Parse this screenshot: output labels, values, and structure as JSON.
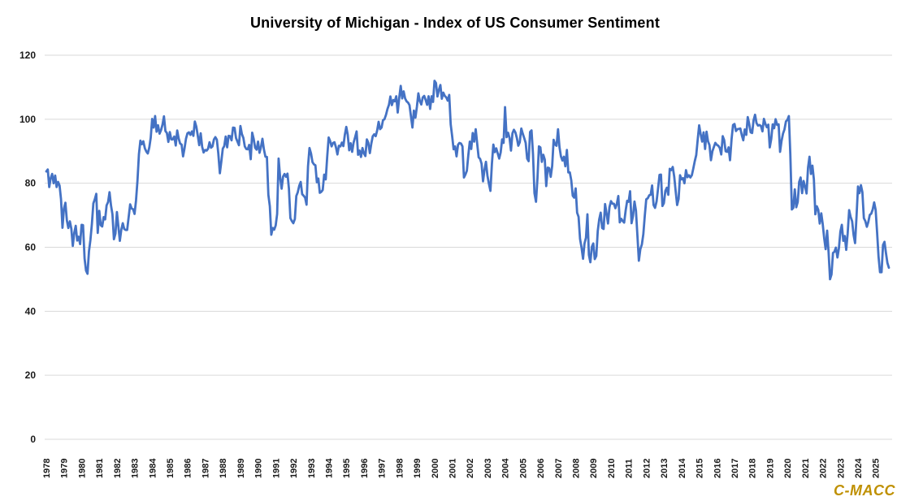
{
  "chart": {
    "title": "University of Michigan - Index of US Consumer Sentiment"
  },
  "watermark": {
    "text": "C-MACC",
    "color": "#BF9000"
  },
  "chart_data": {
    "type": "line",
    "title": "University of Michigan - Index of US Consumer Sentiment",
    "series_name": "Index of US Consumer Sentiment",
    "frequency": "monthly",
    "start_year": 1978,
    "start_month": 1,
    "xlabel": "",
    "ylabel": "",
    "ylim": [
      0,
      120
    ],
    "y_ticks": [
      0,
      20,
      40,
      60,
      80,
      100,
      120
    ],
    "x_tick_labels": [
      "1978",
      "1979",
      "1980",
      "1981",
      "1982",
      "1983",
      "1984",
      "1985",
      "1986",
      "1987",
      "1988",
      "1989",
      "1990",
      "1991",
      "1992",
      "1993",
      "1994",
      "1995",
      "1996",
      "1997",
      "1998",
      "1999",
      "2000",
      "2001",
      "2002",
      "2003",
      "2004",
      "2005",
      "2006",
      "2007",
      "2008",
      "2009",
      "2010",
      "2011",
      "2012",
      "2013",
      "2014",
      "2015",
      "2016",
      "2017",
      "2018",
      "2019",
      "2020",
      "2021",
      "2022",
      "2023",
      "2024",
      "2025"
    ],
    "grid": true,
    "legend": false,
    "line_color": "#4472C4",
    "gridline_color": "#D9D9D9",
    "tick_label_color": "#1a1a1a",
    "monthly_values_by_year": {
      "1978": [
        83.7,
        84.3,
        78.8,
        81.6,
        82.9,
        80.0,
        82.4,
        78.8,
        80.4,
        79.3,
        75.0,
        66.1
      ],
      "1979": [
        72.1,
        73.9,
        68.4,
        66.0,
        68.1,
        65.8,
        60.4,
        64.5,
        66.7,
        62.1,
        63.3,
        61.0
      ],
      "1980": [
        67.0,
        66.9,
        56.5,
        52.7,
        51.7,
        58.7,
        62.3,
        67.3,
        73.7,
        75.0,
        76.7,
        64.5
      ],
      "1981": [
        71.4,
        66.9,
        66.5,
        69.4,
        68.7,
        73.1,
        74.1,
        77.2,
        73.1,
        70.3,
        62.5,
        64.3
      ],
      "1982": [
        71.0,
        66.5,
        62.0,
        65.5,
        67.5,
        65.7,
        65.4,
        65.4,
        69.3,
        73.4,
        72.1,
        71.9
      ],
      "1983": [
        70.4,
        74.6,
        80.8,
        89.1,
        93.3,
        92.2,
        93.1,
        90.9,
        89.9,
        89.3,
        91.1,
        94.2
      ],
      "1984": [
        100.1,
        97.4,
        101.0,
        96.1,
        98.1,
        95.5,
        96.6,
        98.3,
        100.9,
        96.3,
        95.7,
        92.9
      ],
      "1985": [
        96.0,
        93.7,
        93.7,
        94.6,
        91.8,
        96.5,
        94.0,
        92.4,
        92.1,
        88.4,
        90.9,
        93.9
      ],
      "1986": [
        95.6,
        95.9,
        95.1,
        96.2,
        94.8,
        99.3,
        97.7,
        94.9,
        91.9,
        95.6,
        91.4,
        89.6
      ],
      "1987": [
        90.4,
        90.2,
        90.8,
        92.8,
        91.1,
        91.5,
        93.7,
        94.4,
        93.6,
        89.3,
        83.1,
        86.8
      ],
      "1988": [
        90.8,
        91.6,
        94.6,
        91.2,
        94.8,
        94.7,
        93.4,
        97.4,
        97.3,
        94.1,
        93.0,
        91.9
      ],
      "1989": [
        97.9,
        95.4,
        94.2,
        91.5,
        90.7,
        90.6,
        92.0,
        87.5,
        95.8,
        93.9,
        91.1,
        90.5
      ],
      "1990": [
        93.0,
        89.5,
        91.3,
        93.9,
        90.6,
        88.3,
        88.2,
        76.4,
        72.8,
        63.9,
        66.0,
        65.5
      ],
      "1991": [
        66.8,
        70.4,
        87.7,
        81.8,
        78.3,
        82.1,
        82.9,
        82.0,
        83.0,
        78.3,
        69.1,
        68.2
      ],
      "1992": [
        67.5,
        68.8,
        76.0,
        77.2,
        79.2,
        80.4,
        76.6,
        76.1,
        75.5,
        73.3,
        85.3,
        91.0
      ],
      "1993": [
        89.3,
        86.6,
        85.9,
        85.6,
        80.3,
        81.5,
        77.0,
        77.3,
        77.9,
        82.7,
        81.2,
        88.2
      ],
      "1994": [
        94.3,
        93.2,
        91.5,
        92.6,
        92.8,
        91.2,
        89.0,
        91.7,
        91.5,
        92.7,
        91.6,
        95.1
      ],
      "1995": [
        97.6,
        95.1,
        90.3,
        92.5,
        89.8,
        92.7,
        94.4,
        96.2,
        88.9,
        90.2,
        88.2,
        91.0
      ],
      "1996": [
        89.3,
        88.5,
        93.7,
        92.7,
        89.4,
        92.4,
        94.7,
        95.3,
        94.7,
        96.5,
        99.2,
        96.9
      ],
      "1997": [
        97.4,
        99.7,
        100.0,
        101.4,
        103.2,
        104.5,
        107.1,
        104.4,
        106.0,
        105.6,
        107.2,
        102.1
      ],
      "1998": [
        106.6,
        110.4,
        106.5,
        108.7,
        106.5,
        105.6,
        105.2,
        104.4,
        100.9,
        97.4,
        102.7,
        100.5
      ],
      "1999": [
        103.9,
        108.1,
        105.7,
        104.6,
        106.8,
        107.3,
        106.0,
        104.5,
        107.2,
        103.2,
        107.2,
        105.4
      ],
      "2000": [
        112.0,
        111.3,
        107.1,
        109.2,
        110.7,
        106.4,
        108.3,
        107.3,
        106.8,
        105.8,
        107.6,
        98.4
      ],
      "2001": [
        94.7,
        90.6,
        91.5,
        88.4,
        92.0,
        92.6,
        92.4,
        91.5,
        81.8,
        82.7,
        83.9,
        88.8
      ],
      "2002": [
        93.0,
        90.7,
        95.7,
        93.0,
        96.9,
        92.4,
        88.1,
        87.6,
        86.1,
        80.6,
        84.2,
        86.7
      ],
      "2003": [
        82.4,
        79.9,
        77.6,
        86.0,
        92.1,
        89.7,
        90.9,
        89.3,
        87.7,
        89.6,
        93.7,
        92.6
      ],
      "2004": [
        103.8,
        94.4,
        95.8,
        94.2,
        90.2,
        95.6,
        96.7,
        95.9,
        94.2,
        91.7,
        92.8,
        97.1
      ],
      "2005": [
        95.5,
        94.1,
        92.6,
        87.7,
        86.9,
        96.0,
        96.5,
        89.1,
        76.9,
        74.2,
        81.6,
        91.5
      ],
      "2006": [
        91.2,
        86.7,
        88.9,
        87.4,
        79.1,
        84.9,
        84.7,
        82.0,
        85.4,
        93.6,
        92.1,
        91.7
      ],
      "2007": [
        96.9,
        91.3,
        88.4,
        87.1,
        88.3,
        85.3,
        90.4,
        83.4,
        83.4,
        80.9,
        76.1,
        75.5
      ],
      "2008": [
        78.4,
        70.8,
        69.5,
        62.6,
        59.8,
        56.4,
        61.2,
        63.0,
        70.3,
        57.6,
        55.3,
        60.1
      ],
      "2009": [
        61.2,
        56.3,
        57.3,
        65.1,
        68.7,
        70.8,
        66.0,
        65.7,
        73.5,
        70.6,
        67.4,
        72.5
      ],
      "2010": [
        74.4,
        73.6,
        73.6,
        72.2,
        73.6,
        76.0,
        67.8,
        68.9,
        68.2,
        67.7,
        71.6,
        74.5
      ],
      "2011": [
        74.2,
        77.5,
        67.5,
        69.8,
        74.3,
        71.5,
        63.7,
        55.8,
        59.4,
        60.9,
        64.1,
        69.9
      ],
      "2012": [
        75.0,
        75.3,
        76.2,
        76.4,
        79.3,
        73.2,
        72.3,
        74.3,
        78.3,
        82.6,
        82.7,
        72.9
      ],
      "2013": [
        73.8,
        77.6,
        78.6,
        76.4,
        84.5,
        84.1,
        85.1,
        82.1,
        77.5,
        73.2,
        75.1,
        82.5
      ],
      "2014": [
        81.2,
        81.6,
        80.0,
        84.1,
        81.9,
        82.5,
        81.8,
        82.5,
        84.6,
        86.9,
        88.8,
        93.6
      ],
      "2015": [
        98.1,
        95.4,
        93.0,
        95.9,
        90.7,
        96.1,
        93.1,
        91.9,
        87.2,
        90.0,
        91.3,
        92.6
      ],
      "2016": [
        92.0,
        91.7,
        91.0,
        89.0,
        94.7,
        93.5,
        90.0,
        89.8,
        91.2,
        87.2,
        93.8,
        98.2
      ],
      "2017": [
        98.5,
        96.3,
        96.9,
        97.0,
        97.1,
        95.0,
        93.4,
        96.8,
        95.1,
        100.7,
        98.5,
        95.9
      ],
      "2018": [
        95.7,
        99.7,
        101.4,
        98.8,
        98.0,
        98.2,
        97.9,
        96.2,
        100.1,
        98.6,
        97.5,
        98.3
      ],
      "2019": [
        91.2,
        93.8,
        98.4,
        97.2,
        100.0,
        98.2,
        98.4,
        89.8,
        93.2,
        95.5,
        96.8,
        99.3
      ],
      "2020": [
        99.8,
        101.0,
        89.1,
        71.8,
        72.3,
        78.1,
        72.5,
        74.1,
        80.4,
        81.8,
        76.9,
        80.7
      ],
      "2021": [
        79.0,
        76.8,
        84.9,
        88.3,
        82.9,
        85.5,
        81.2,
        70.3,
        72.8,
        71.7,
        67.4,
        70.6
      ],
      "2022": [
        67.2,
        62.8,
        59.4,
        65.2,
        58.4,
        50.0,
        51.5,
        58.2,
        58.6,
        59.9,
        56.8,
        59.7
      ],
      "2023": [
        64.9,
        67.0,
        62.0,
        63.5,
        59.2,
        64.4,
        71.6,
        69.5,
        68.1,
        63.8,
        61.3,
        69.7
      ],
      "2024": [
        79.0,
        76.9,
        79.4,
        77.2,
        69.1,
        68.2,
        66.4,
        67.9,
        70.1,
        70.5,
        71.8,
        74.0
      ],
      "2025": [
        71.7,
        64.7,
        57.0,
        52.2,
        52.2,
        60.7,
        61.7,
        58.2,
        55.1,
        53.6
      ]
    }
  }
}
